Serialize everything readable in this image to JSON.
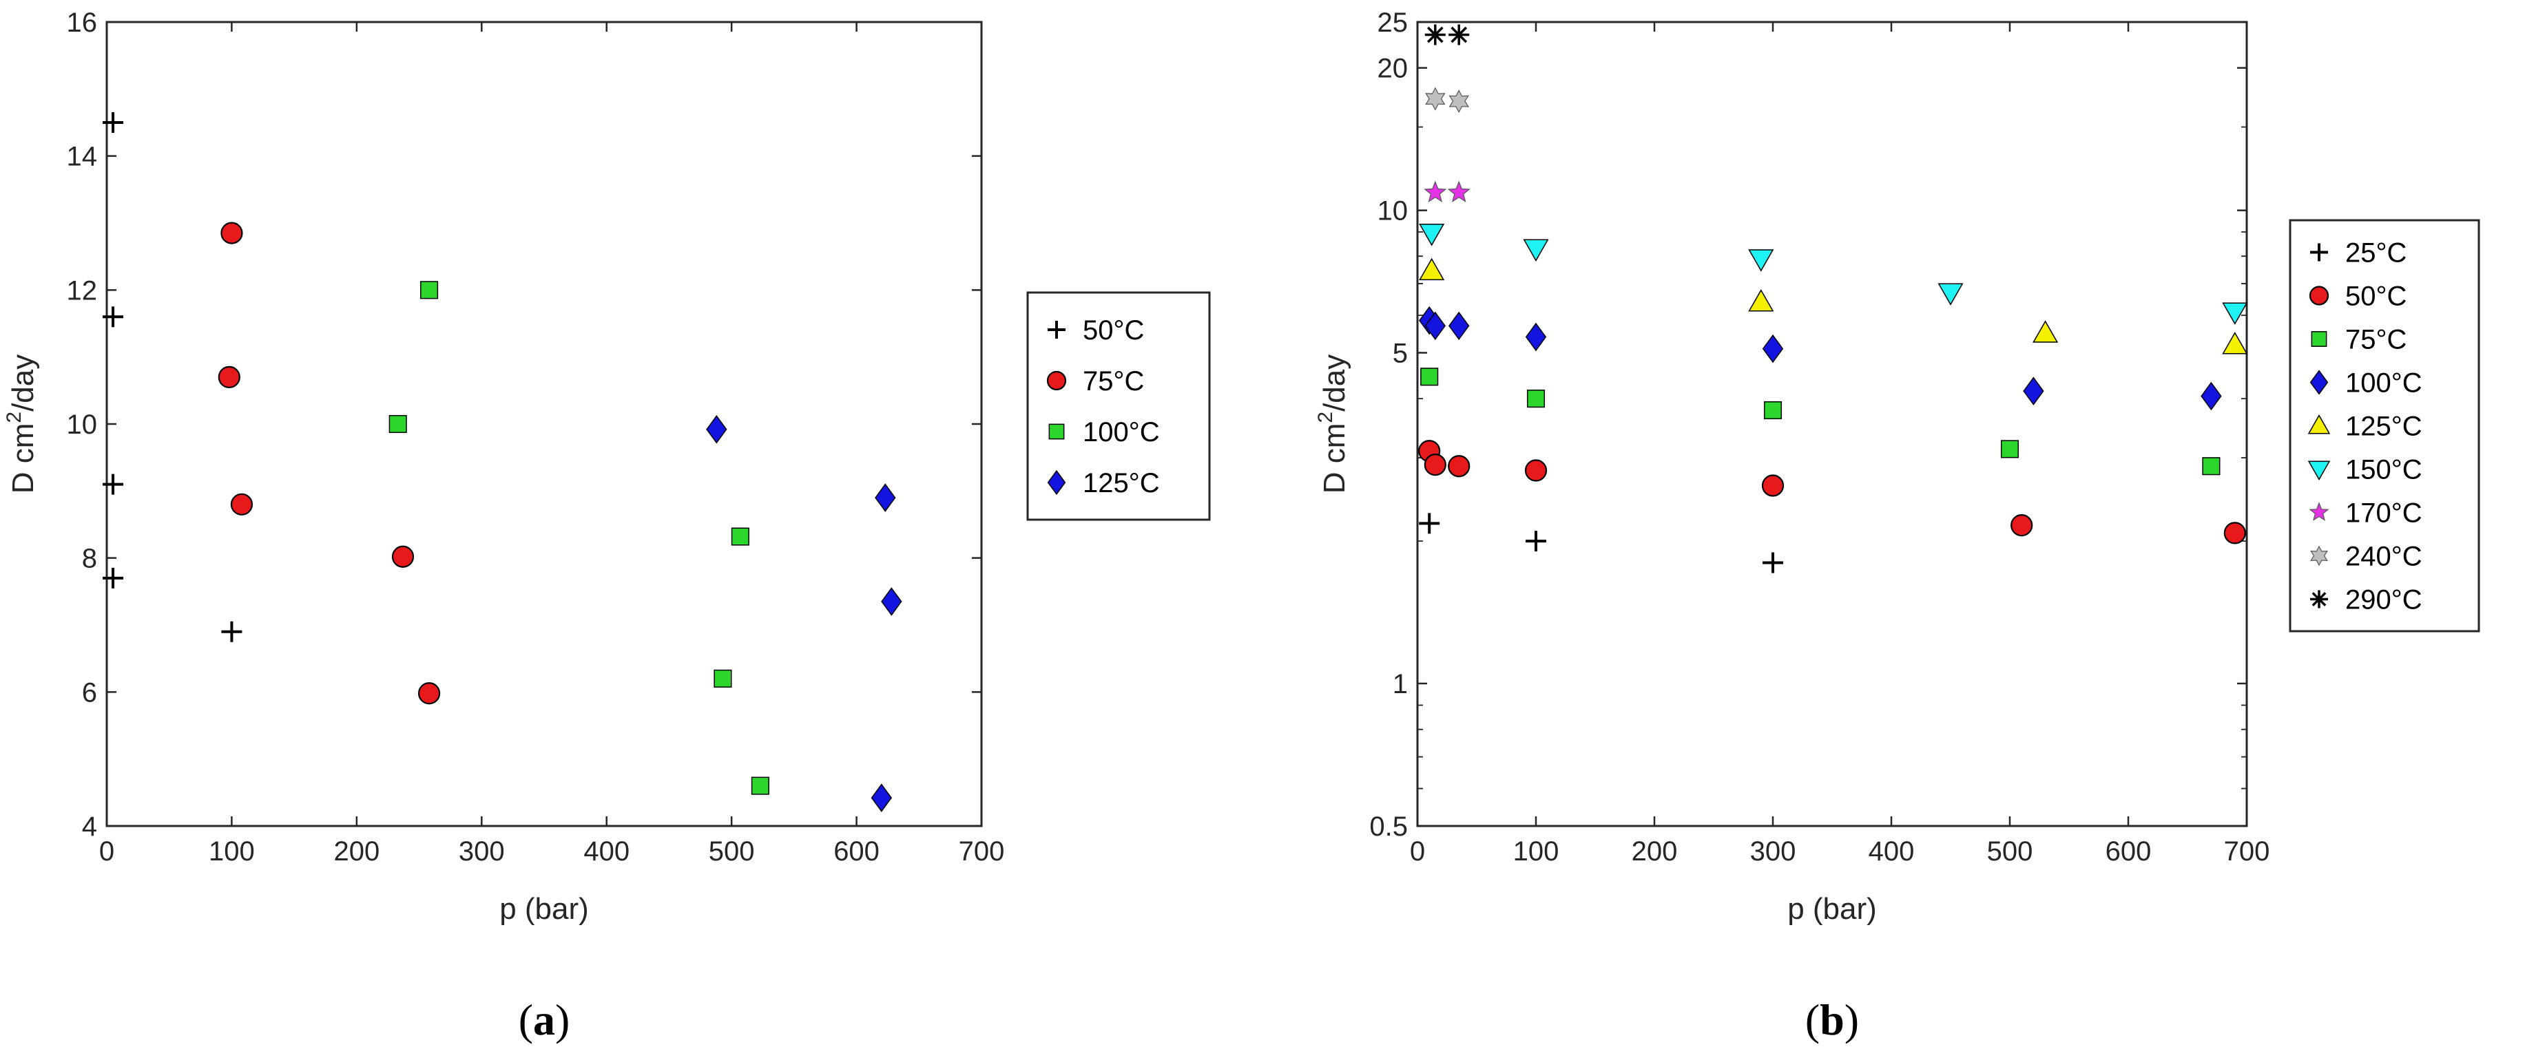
{
  "chart_data": [
    {
      "type": "scatter",
      "panel_label": {
        "open": "(",
        "letter": "a",
        "close": ")"
      },
      "xlabel": "p (bar)",
      "ylabel": {
        "prefix": "D cm",
        "sup": "2",
        "suffix": "/day"
      },
      "xlim": [
        0,
        700
      ],
      "ylim": [
        4,
        16
      ],
      "yscale": "linear",
      "xticks": [
        "0",
        "100",
        "200",
        "300",
        "400",
        "500",
        "600",
        "700"
      ],
      "yticks": [
        "4",
        "6",
        "8",
        "10",
        "12",
        "14",
        "16"
      ],
      "legend_position": "right",
      "series": [
        {
          "name": "50°C",
          "marker": "plus",
          "color": "#000000",
          "points": [
            [
              5,
              14.5
            ],
            [
              5,
              11.6
            ],
            [
              5,
              9.1
            ],
            [
              5,
              7.7
            ],
            [
              100,
              6.9
            ]
          ]
        },
        {
          "name": "75°C",
          "marker": "circle",
          "color": "#e8191b",
          "points": [
            [
              100,
              12.85
            ],
            [
              98,
              10.7
            ],
            [
              108,
              8.8
            ],
            [
              237,
              8.02
            ],
            [
              258,
              5.98
            ]
          ]
        },
        {
          "name": "100°C",
          "marker": "square",
          "color": "#2dd62d",
          "points": [
            [
              258,
              12.0
            ],
            [
              233,
              10.0
            ],
            [
              507,
              8.32
            ],
            [
              493,
              6.2
            ],
            [
              523,
              4.6
            ]
          ]
        },
        {
          "name": "125°C",
          "marker": "diamond",
          "color": "#1414e0",
          "points": [
            [
              488,
              9.92
            ],
            [
              623,
              8.9
            ],
            [
              628,
              7.35
            ],
            [
              620,
              4.42
            ]
          ]
        }
      ]
    },
    {
      "type": "scatter",
      "panel_label": {
        "open": "(",
        "letter": "b",
        "close": ")"
      },
      "xlabel": "p (bar)",
      "ylabel": {
        "prefix": "D cm",
        "sup": "2",
        "suffix": "/day"
      },
      "xlim": [
        0,
        700
      ],
      "ylim": [
        0.5,
        25
      ],
      "yscale": "log",
      "xticks": [
        "0",
        "100",
        "200",
        "300",
        "400",
        "500",
        "600",
        "700"
      ],
      "yticks": [
        {
          "v": 0.5,
          "label": "0.5"
        },
        {
          "v": 1,
          "label": "1"
        },
        {
          "v": 5,
          "label": "5"
        },
        {
          "v": 10,
          "label": "10"
        },
        {
          "v": 20,
          "label": "20"
        },
        {
          "v": 25,
          "label": "25"
        }
      ],
      "legend_position": "right",
      "series": [
        {
          "name": "25°C",
          "marker": "plus",
          "color": "#000000",
          "points": [
            [
              10,
              2.18
            ],
            [
              100,
              2.0
            ],
            [
              300,
              1.8
            ]
          ]
        },
        {
          "name": "50°C",
          "marker": "circle",
          "color": "#e8191b",
          "points": [
            [
              10,
              3.1
            ],
            [
              15,
              2.9
            ],
            [
              35,
              2.88
            ],
            [
              100,
              2.82
            ],
            [
              300,
              2.62
            ],
            [
              510,
              2.16
            ],
            [
              690,
              2.08
            ]
          ]
        },
        {
          "name": "75°C",
          "marker": "square",
          "color": "#2dd62d",
          "points": [
            [
              10,
              4.45
            ],
            [
              100,
              4.0
            ],
            [
              300,
              3.78
            ],
            [
              500,
              3.13
            ],
            [
              670,
              2.88
            ]
          ]
        },
        {
          "name": "100°C",
          "marker": "diamond",
          "color": "#1414e0",
          "points": [
            [
              10,
              5.85
            ],
            [
              15,
              5.7
            ],
            [
              35,
              5.7
            ],
            [
              100,
              5.4
            ],
            [
              300,
              5.1
            ],
            [
              520,
              4.15
            ],
            [
              670,
              4.05
            ]
          ]
        },
        {
          "name": "125°C",
          "marker": "triangle",
          "color": "#f5f000",
          "points": [
            [
              12,
              7.45
            ],
            [
              290,
              6.4
            ],
            [
              530,
              5.5
            ],
            [
              690,
              5.2
            ]
          ]
        },
        {
          "name": "150°C",
          "marker": "triangle-down",
          "color": "#1ff2f2",
          "points": [
            [
              12,
              8.95
            ],
            [
              100,
              8.3
            ],
            [
              290,
              7.9
            ],
            [
              450,
              6.7
            ],
            [
              690,
              6.1
            ]
          ]
        },
        {
          "name": "170°C",
          "marker": "star5",
          "color": "#e632e6",
          "points": [
            [
              15,
              10.9
            ],
            [
              35,
              10.9
            ]
          ]
        },
        {
          "name": "240°C",
          "marker": "star6",
          "color": "#bfbfbf",
          "points": [
            [
              15,
              17.2
            ],
            [
              35,
              17.0
            ]
          ]
        },
        {
          "name": "290°C",
          "marker": "asterisk",
          "color": "#000000",
          "points": [
            [
              15,
              23.5
            ],
            [
              35,
              23.5
            ]
          ]
        }
      ]
    }
  ]
}
